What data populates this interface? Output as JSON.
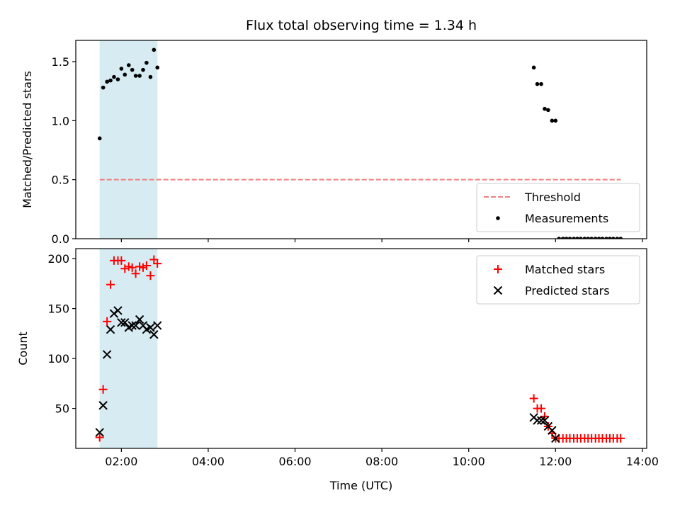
{
  "chart_data": {
    "title": "Flux total observing time = 1.34 h",
    "xlabel": "Time (UTC)",
    "x_tick_labels": [
      "02:00",
      "04:00",
      "06:00",
      "08:00",
      "10:00",
      "12:00",
      "14:00"
    ],
    "x_ticks_hours": [
      2,
      4,
      6,
      8,
      10,
      12,
      14
    ],
    "xlim_hours": [
      0.95,
      14.1
    ],
    "shaded_interval_hours": [
      1.5,
      2.83
    ],
    "colors": {
      "shade": "#add8e6",
      "threshold": "#f08080",
      "matched": "#ff0000",
      "predicted": "#000000",
      "measurement": "#000000"
    },
    "panels": [
      {
        "type": "scatter",
        "ylabel": "Matched/Predicted stars",
        "ylim": [
          0,
          1.68
        ],
        "y_ticks": [
          0.0,
          0.5,
          1.0,
          1.5
        ],
        "y_tick_labels": [
          "0.0",
          "0.5",
          "1.0",
          "1.5"
        ],
        "legend_position": "lower-right",
        "threshold": {
          "name": "Threshold",
          "value": 0.5,
          "x_range_hours": [
            1.5,
            13.5
          ]
        },
        "series": [
          {
            "name": "Measurements",
            "marker": "dot",
            "x_hours": [
              1.5,
              1.58,
              1.67,
              1.75,
              1.83,
              1.92,
              2.0,
              2.08,
              2.17,
              2.25,
              2.33,
              2.42,
              2.5,
              2.58,
              2.67,
              2.75,
              2.83,
              11.5,
              11.58,
              11.67,
              11.75,
              11.83,
              11.92,
              12.0,
              12.08,
              12.17,
              12.25,
              12.33,
              12.42,
              12.5,
              12.58,
              12.67,
              12.75,
              12.83,
              12.92,
              13.0,
              13.08,
              13.17,
              13.25,
              13.33,
              13.42,
              13.5
            ],
            "y": [
              0.85,
              1.28,
              1.33,
              1.34,
              1.37,
              1.35,
              1.44,
              1.39,
              1.47,
              1.43,
              1.38,
              1.38,
              1.43,
              1.49,
              1.37,
              1.6,
              1.45,
              1.45,
              1.31,
              1.31,
              1.1,
              1.09,
              1.0,
              1.0,
              0.0,
              0.0,
              0.0,
              0.0,
              0.0,
              0.0,
              0.0,
              0.0,
              0.0,
              0.0,
              0.0,
              0.0,
              0.0,
              0.0,
              0.0,
              0.0,
              0.0,
              0.0
            ]
          }
        ]
      },
      {
        "type": "scatter",
        "ylabel": "Count",
        "ylim": [
          10,
          210
        ],
        "y_ticks": [
          50,
          100,
          150,
          200
        ],
        "y_tick_labels": [
          "50",
          "100",
          "150",
          "200"
        ],
        "legend_position": "upper-right",
        "series": [
          {
            "name": "Matched stars",
            "marker": "plus",
            "x_hours": [
              1.5,
              1.58,
              1.67,
              1.75,
              1.83,
              1.92,
              2.0,
              2.08,
              2.17,
              2.25,
              2.33,
              2.42,
              2.5,
              2.58,
              2.67,
              2.75,
              2.83,
              11.5,
              11.58,
              11.67,
              11.75,
              11.83,
              11.92,
              12.0,
              12.08,
              12.17,
              12.25,
              12.33,
              12.42,
              12.5,
              12.58,
              12.67,
              12.75,
              12.83,
              12.92,
              13.0,
              13.08,
              13.17,
              13.25,
              13.33,
              13.42,
              13.5
            ],
            "y": [
              21,
              69,
              137,
              174,
              198,
              198,
              198,
              190,
              192,
              191,
              185,
              192,
              191,
              193,
              183,
              199,
              195,
              60,
              50,
              50,
              42,
              32,
              25,
              20,
              20,
              20,
              20,
              20,
              20,
              20,
              20,
              20,
              20,
              20,
              20,
              20,
              20,
              20,
              20,
              20,
              20,
              20
            ]
          },
          {
            "name": "Predicted stars",
            "marker": "cross",
            "x_hours": [
              1.5,
              1.58,
              1.67,
              1.75,
              1.83,
              1.92,
              2.0,
              2.08,
              2.17,
              2.25,
              2.33,
              2.42,
              2.5,
              2.58,
              2.67,
              2.75,
              2.83,
              11.5,
              11.58,
              11.67,
              11.75,
              11.83,
              11.92,
              12.0
            ],
            "y": [
              26,
              53,
              104,
              129,
              145,
              148,
              136,
              136,
              131,
              133,
              133,
              139,
              133,
              129,
              131,
              124,
              133,
              41,
              38,
              38,
              38,
              32,
              28,
              20
            ]
          }
        ]
      }
    ]
  }
}
